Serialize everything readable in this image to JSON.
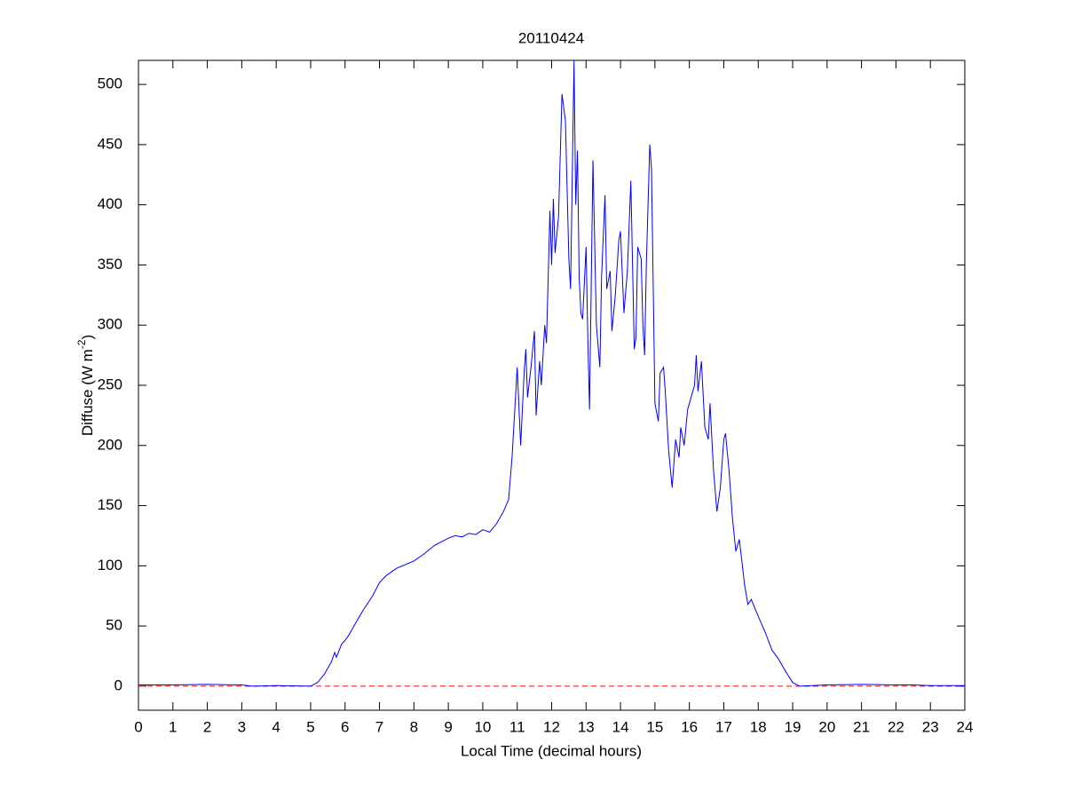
{
  "chart_data": {
    "type": "line",
    "title": "20110424",
    "xlabel": "Local Time (decimal hours)",
    "ylabel": [
      "Diffuse (W m",
      "-2",
      ")"
    ],
    "x": [
      0,
      1,
      2,
      3,
      3.3,
      4,
      5,
      5.2,
      5.4,
      5.6,
      5.7,
      5.75,
      5.9,
      6,
      6.1,
      6.3,
      6.5,
      6.8,
      7,
      7.2,
      7.5,
      8,
      8.3,
      8.6,
      9,
      9.2,
      9.4,
      9.6,
      9.8,
      10,
      10.2,
      10.4,
      10.6,
      10.75,
      10.85,
      11,
      11.1,
      11.2,
      11.25,
      11.3,
      11.4,
      11.5,
      11.55,
      11.65,
      11.7,
      11.8,
      11.85,
      11.95,
      12,
      12.05,
      12.1,
      12.2,
      12.3,
      12.4,
      12.5,
      12.55,
      12.65,
      12.7,
      12.75,
      12.8,
      12.85,
      12.9,
      13,
      13.05,
      13.1,
      13.2,
      13.3,
      13.4,
      13.45,
      13.55,
      13.6,
      13.7,
      13.75,
      13.85,
      13.95,
      14,
      14.1,
      14.2,
      14.3,
      14.35,
      14.4,
      14.45,
      14.5,
      14.6,
      14.65,
      14.7,
      14.75,
      14.85,
      14.9,
      15,
      15.1,
      15.15,
      15.25,
      15.3,
      15.4,
      15.5,
      15.6,
      15.7,
      15.75,
      15.85,
      15.95,
      16.05,
      16.15,
      16.2,
      16.25,
      16.35,
      16.45,
      16.55,
      16.6,
      16.7,
      16.8,
      16.9,
      17,
      17.05,
      17.15,
      17.25,
      17.35,
      17.45,
      17.5,
      17.6,
      17.7,
      17.8,
      17.9,
      18,
      18.2,
      18.4,
      18.6,
      18.8,
      19,
      19.2,
      20,
      21,
      22,
      22.5,
      23,
      24
    ],
    "series": [
      {
        "color": "#0000ff",
        "values": [
          1,
          1,
          1.5,
          1,
          0,
          0.5,
          0,
          3,
          10,
          20,
          28,
          24,
          35,
          38,
          42,
          52,
          62,
          75,
          86,
          92,
          98,
          104,
          110,
          117,
          123,
          125,
          124,
          127,
          126,
          130,
          128,
          135,
          145,
          155,
          190,
          265,
          200,
          260,
          280,
          240,
          265,
          295,
          225,
          270,
          250,
          300,
          285,
          395,
          350,
          405,
          360,
          390,
          492,
          470,
          355,
          330,
          520,
          400,
          445,
          340,
          310,
          305,
          365,
          290,
          230,
          437,
          300,
          265,
          340,
          408,
          330,
          345,
          295,
          325,
          370,
          378,
          310,
          345,
          420,
          350,
          280,
          290,
          365,
          355,
          300,
          275,
          350,
          450,
          430,
          235,
          220,
          260,
          265,
          245,
          195,
          165,
          205,
          190,
          215,
          200,
          230,
          240,
          250,
          275,
          245,
          270,
          215,
          205,
          235,
          180,
          145,
          165,
          205,
          210,
          180,
          140,
          112,
          122,
          110,
          85,
          68,
          72,
          65,
          58,
          45,
          30,
          22,
          12,
          3,
          0,
          1,
          1.5,
          1,
          1,
          0.5,
          0.5
        ]
      }
    ],
    "reference_line": {
      "value": 0,
      "color": "#ff0000",
      "dashed": true
    },
    "xlim": [
      0,
      24
    ],
    "xticks": [
      0,
      1,
      2,
      3,
      4,
      5,
      6,
      7,
      8,
      9,
      10,
      11,
      12,
      13,
      14,
      15,
      16,
      17,
      18,
      19,
      20,
      21,
      22,
      23,
      24
    ],
    "ylim": [
      -20,
      520
    ],
    "yticks": [
      0,
      50,
      100,
      150,
      200,
      250,
      300,
      350,
      400,
      450,
      500
    ],
    "grid": false
  }
}
